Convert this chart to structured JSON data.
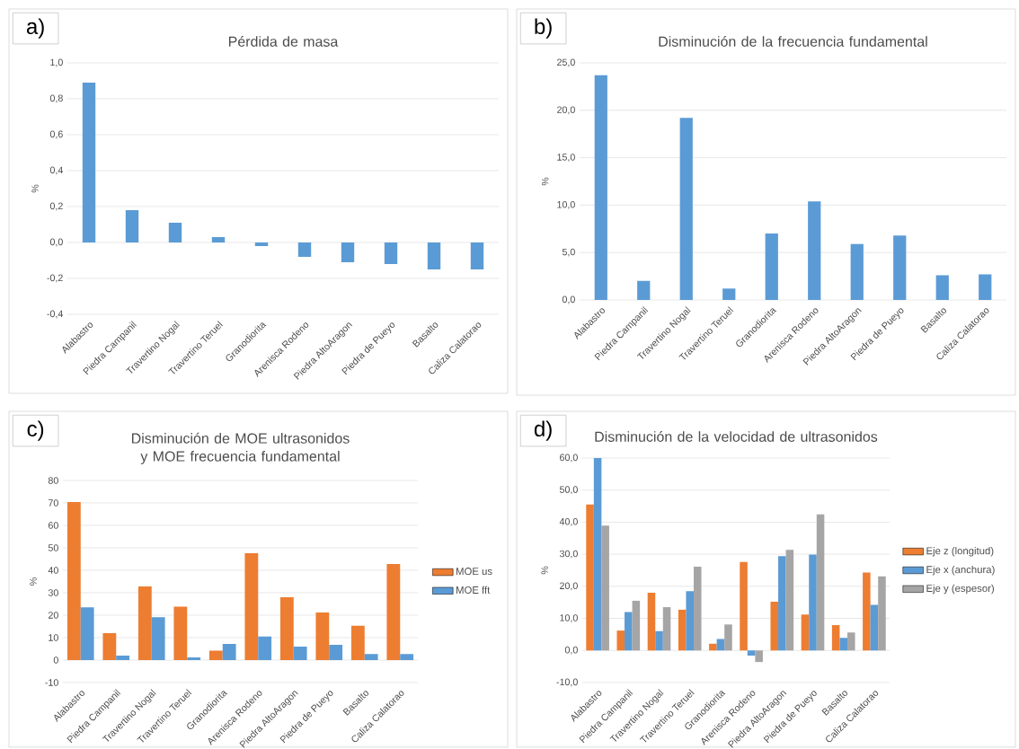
{
  "chart_data": [
    {
      "type": "bar",
      "title": "Pérdida de masa",
      "ylabel": "%",
      "annotations": [
        "a)"
      ],
      "grid": "y",
      "color": "#5b9bd5",
      "categories": [
        "Alabastro",
        "Piedra Campanil",
        "Travertino Nogal",
        "Travertino Teruel",
        "Granodiorita",
        "Arenisca Rodeno",
        "Piedra AltoAragon",
        "Piedra de Pueyo",
        "Basalto",
        "Caliza Calatorao"
      ],
      "values": [
        0.89,
        0.18,
        0.11,
        0.03,
        -0.02,
        -0.08,
        -0.11,
        -0.12,
        -0.15,
        -0.15
      ],
      "ylim": [
        -0.4,
        1.0
      ],
      "yticks": [
        {
          "value": -0.4,
          "label": "-0,4"
        },
        {
          "value": -0.2,
          "label": "-0,2"
        },
        {
          "value": 0,
          "label": "0,0"
        },
        {
          "value": 0.2,
          "label": "0,2"
        },
        {
          "value": 0.4,
          "label": "0,4"
        },
        {
          "value": 0.6,
          "label": "0,6"
        },
        {
          "value": 0.8,
          "label": "0,8"
        },
        {
          "value": 1.0,
          "label": "1,0"
        }
      ]
    },
    {
      "type": "bar",
      "title": "Disminución de la frecuencia fundamental",
      "ylabel": "%",
      "annotations": [
        "b)"
      ],
      "grid": "y",
      "color": "#5b9bd5",
      "categories": [
        "Alabastro",
        "Piedra Campanil",
        "Travertino Nogal",
        "Travertino Teruel",
        "Granodiorita",
        "Arenisca Rodeno",
        "Piedra AltoAragon",
        "Piedra de Pueyo",
        "Basalto",
        "Caliza Calatorao"
      ],
      "values": [
        23.7,
        2.0,
        19.2,
        1.2,
        7.0,
        10.4,
        5.9,
        6.8,
        2.6,
        2.7
      ],
      "ylim": [
        0,
        25
      ],
      "yticks": [
        {
          "value": 0,
          "label": "0,0"
        },
        {
          "value": 5,
          "label": "5,0"
        },
        {
          "value": 10,
          "label": "10,0"
        },
        {
          "value": 15,
          "label": "15,0"
        },
        {
          "value": 20,
          "label": "20,0"
        },
        {
          "value": 25,
          "label": "25,0"
        }
      ]
    },
    {
      "type": "bar",
      "title": "Disminución de MOE ultrasonidos y MOE frecuencia fundamental",
      "ylabel": "%",
      "annotations": [
        "c)"
      ],
      "grid": "y",
      "legend": "right",
      "categories": [
        "Alabastro",
        "Piedra Campanil",
        "Travertino Nogal",
        "Travertino Teruel",
        "Granodiorita",
        "Arenisca Rodeno",
        "Piedra AltoAragon",
        "Piedra de Pueyo",
        "Basalto",
        "Caliza Calatorao"
      ],
      "series": [
        {
          "name": "MOE us",
          "color": "#ed7d31",
          "values": [
            70.4,
            12.0,
            32.8,
            23.8,
            4.2,
            47.6,
            28.0,
            21.2,
            15.3,
            42.8
          ]
        },
        {
          "name": "MOE fft",
          "color": "#5b9bd5",
          "values": [
            23.5,
            2.0,
            19.1,
            1.2,
            7.2,
            10.5,
            6.0,
            6.8,
            2.7,
            2.7
          ]
        }
      ],
      "ylim": [
        -10,
        80
      ],
      "yticks": [
        -10,
        0,
        10,
        20,
        30,
        40,
        50,
        60,
        70,
        80
      ]
    },
    {
      "type": "bar",
      "title": "Disminución de la velocidad de ultrasonidos",
      "ylabel": "%",
      "annotations": [
        "d)"
      ],
      "grid": "y",
      "legend": "right",
      "categories": [
        "Alabastro",
        "Piedra Campanil",
        "Travertino Nogal",
        "Travertino Teruel",
        "Granodiorita",
        "Arenisca Rodeno",
        "Piedra AltoAragon",
        "Piedra de Pueyo",
        "Basalto",
        "Caliza Calatorao"
      ],
      "series": [
        {
          "name": "Eje z (longitud)",
          "color": "#ed7d31",
          "values": [
            45.5,
            6.2,
            18.0,
            12.7,
            2.1,
            27.6,
            15.2,
            11.2,
            7.9,
            24.3
          ]
        },
        {
          "name": "Eje x (anchura)",
          "color": "#5b9bd5",
          "values": [
            60.0,
            12.0,
            6.0,
            18.5,
            3.6,
            -1.6,
            29.4,
            29.9,
            3.9,
            14.2
          ]
        },
        {
          "name": "Eje y (espesor)",
          "color": "#a5a5a5",
          "values": [
            38.9,
            15.5,
            13.5,
            26.1,
            8.1,
            -3.6,
            31.4,
            42.4,
            5.6,
            23.1
          ]
        }
      ],
      "ylim": [
        -10,
        60
      ],
      "yticks": [
        {
          "value": -10,
          "label": "-10,0"
        },
        {
          "value": 0,
          "label": "0,0"
        },
        {
          "value": 10,
          "label": "10,0"
        },
        {
          "value": 20,
          "label": "20,0"
        },
        {
          "value": 30,
          "label": "30,0"
        },
        {
          "value": 40,
          "label": "40,0"
        },
        {
          "value": 50,
          "label": "50,0"
        },
        {
          "value": 60,
          "label": "60,0"
        }
      ]
    }
  ]
}
